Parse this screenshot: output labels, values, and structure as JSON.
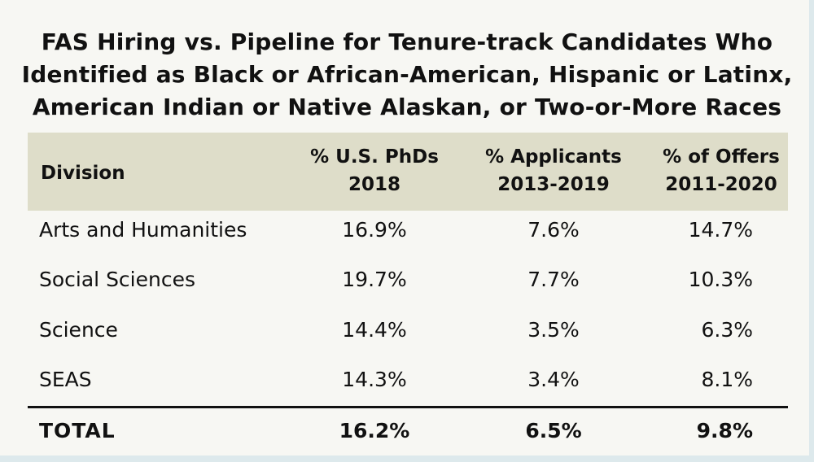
{
  "title_lines": [
    "FAS Hiring vs. Pipeline for Tenure-track Candidates Who",
    "Identified as Black or African-American, Hispanic or Latinx,",
    "American Indian or Native Alaskan, or Two-or-More Races"
  ],
  "colors": {
    "background": "#f7f7f3",
    "header_band": "#deddc9",
    "text": "#111111",
    "border": "#dde9ec"
  },
  "chart_data": {
    "type": "table",
    "title": "FAS Hiring vs. Pipeline for Tenure-track Candidates Who Identified as Black or African-American, Hispanic or Latinx, American Indian or Native Alaskan, or Two-or-More Races",
    "columns": [
      {
        "line1": "Division",
        "line2": ""
      },
      {
        "line1": "% U.S. PhDs",
        "line2": "2018"
      },
      {
        "line1": "% Applicants",
        "line2": "2013-2019"
      },
      {
        "line1": "% of Offers",
        "line2": "2011-2020"
      }
    ],
    "rows": [
      [
        "Arts and Humanities",
        "16.9%",
        "7.6%",
        "14.7%"
      ],
      [
        "Social Sciences",
        "19.7%",
        "7.7%",
        "10.3%"
      ],
      [
        "Science",
        "14.4%",
        "3.5%",
        "6.3%"
      ],
      [
        "SEAS",
        "14.3%",
        "3.4%",
        "8.1%"
      ]
    ],
    "total": [
      "TOTAL",
      "16.2%",
      "6.5%",
      "9.8%"
    ]
  }
}
